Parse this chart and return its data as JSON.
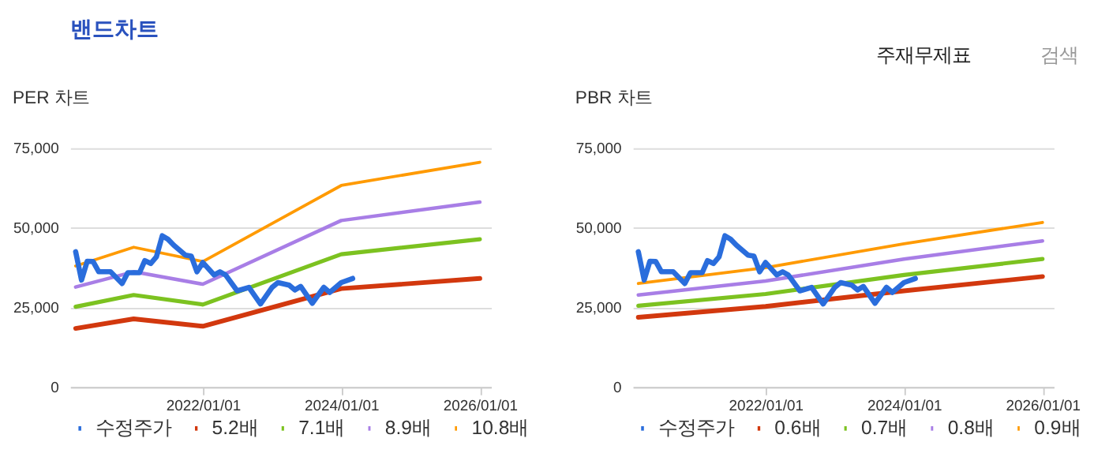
{
  "chart_data": [
    {
      "type": "other",
      "title": "밴드차트",
      "annotations": [
        "주재무제표",
        "검색"
      ]
    },
    {
      "type": "line",
      "title": "PER 차트",
      "xlim": [
        "2020-02-01",
        "2026-03-01"
      ],
      "xticks": [
        {
          "value": "2022-01-01",
          "label": "2022/01/01"
        },
        {
          "value": "2024-01-01",
          "label": "2024/01/01"
        },
        {
          "value": "2026-01-01",
          "label": "2026/01/01"
        }
      ],
      "ylim": [
        0,
        75000
      ],
      "yticks": [
        0,
        {
          "value": 25000,
          "label": "25,000"
        },
        {
          "value": 50000,
          "label": "50,000"
        },
        {
          "value": 75000,
          "label": "75,000"
        }
      ],
      "grid": "y",
      "legend": "bottom",
      "line_style": "solid",
      "series": [
        {
          "name": "수정주가",
          "color": "#2a6ddc",
          "x": [
            "2020-03",
            "2020-04",
            "2020-05",
            "2020-06",
            "2020-07",
            "2020-09",
            "2020-11",
            "2020-12",
            "2021-02",
            "2021-03",
            "2021-04",
            "2021-05",
            "2021-06",
            "2021-07",
            "2021-08",
            "2021-10",
            "2021-11",
            "2021-12",
            "2022-01",
            "2022-03",
            "2022-04",
            "2022-05",
            "2022-07",
            "2022-09",
            "2022-11",
            "2023-01",
            "2023-02",
            "2023-04",
            "2023-05",
            "2023-06",
            "2023-08",
            "2023-10",
            "2023-11",
            "2024-01",
            "2024-03"
          ],
          "values": [
            42500,
            33600,
            39500,
            39400,
            36200,
            36200,
            32500,
            35900,
            35900,
            39700,
            38800,
            40900,
            47500,
            46400,
            44500,
            41400,
            41100,
            36200,
            39100,
            35200,
            36200,
            35200,
            30200,
            31300,
            26100,
            31300,
            32800,
            32000,
            30500,
            31600,
            26300,
            31300,
            29700,
            32800,
            34100
          ]
        },
        {
          "name": "5.2배",
          "color": "#d2380e",
          "x": [
            "2020-03",
            "2021-01",
            "2022-01",
            "2024-01",
            "2026-01"
          ],
          "values": [
            18400,
            21400,
            19100,
            30900,
            34100
          ]
        },
        {
          "name": "7.1배",
          "color": "#7cc220",
          "x": [
            "2020-03",
            "2021-01",
            "2022-01",
            "2024-01",
            "2026-01"
          ],
          "values": [
            25200,
            28900,
            25900,
            41700,
            46400
          ]
        },
        {
          "name": "8.9배",
          "color": "#a87ee6",
          "x": [
            "2020-03",
            "2021-01",
            "2022-01",
            "2024-01",
            "2026-01"
          ],
          "values": [
            31400,
            36200,
            32300,
            52300,
            58100
          ]
        },
        {
          "name": "10.8배",
          "color": "#ff9a00",
          "x": [
            "2020-03",
            "2021-01",
            "2022-01",
            "2024-01",
            "2026-01"
          ],
          "values": [
            38000,
            43900,
            39400,
            63300,
            70600
          ]
        }
      ]
    },
    {
      "type": "line",
      "title": "PBR 차트",
      "xlim": [
        "2020-02-01",
        "2026-03-01"
      ],
      "xticks": [
        {
          "value": "2022-01-01",
          "label": "2022/01/01"
        },
        {
          "value": "2024-01-01",
          "label": "2024/01/01"
        },
        {
          "value": "2026-01-01",
          "label": "2026/01/01"
        }
      ],
      "ylim": [
        0,
        75000
      ],
      "yticks": [
        0,
        {
          "value": 25000,
          "label": "25,000"
        },
        {
          "value": 50000,
          "label": "50,000"
        },
        {
          "value": 75000,
          "label": "75,000"
        }
      ],
      "grid": "y",
      "legend": "bottom",
      "line_style": "solid",
      "series": [
        {
          "name": "수정주가",
          "color": "#2a6ddc",
          "x": [
            "2020-03",
            "2020-04",
            "2020-05",
            "2020-06",
            "2020-07",
            "2020-09",
            "2020-11",
            "2020-12",
            "2021-02",
            "2021-03",
            "2021-04",
            "2021-05",
            "2021-06",
            "2021-07",
            "2021-08",
            "2021-10",
            "2021-11",
            "2021-12",
            "2022-01",
            "2022-03",
            "2022-04",
            "2022-05",
            "2022-07",
            "2022-09",
            "2022-11",
            "2023-01",
            "2023-02",
            "2023-04",
            "2023-05",
            "2023-06",
            "2023-08",
            "2023-10",
            "2023-11",
            "2024-01",
            "2024-03"
          ],
          "values": [
            42500,
            33600,
            39500,
            39400,
            36200,
            36200,
            32500,
            35900,
            35900,
            39700,
            38800,
            40900,
            47500,
            46400,
            44500,
            41400,
            41100,
            36200,
            39100,
            35200,
            36200,
            35200,
            30200,
            31300,
            26100,
            31300,
            32800,
            32000,
            30500,
            31600,
            26300,
            31300,
            29700,
            32800,
            34100
          ]
        },
        {
          "name": "0.6배",
          "color": "#d2380e",
          "x": [
            "2020-03",
            "2022-01",
            "2024-01",
            "2026-01"
          ],
          "values": [
            21900,
            25300,
            30200,
            34700
          ]
        },
        {
          "name": "0.7배",
          "color": "#7cc220",
          "x": [
            "2020-03",
            "2022-01",
            "2024-01",
            "2026-01"
          ],
          "values": [
            25500,
            29200,
            35200,
            40200
          ]
        },
        {
          "name": "0.8배",
          "color": "#a87ee6",
          "x": [
            "2020-03",
            "2022-01",
            "2024-01",
            "2026-01"
          ],
          "values": [
            28900,
            33300,
            40200,
            45900
          ]
        },
        {
          "name": "0.9배",
          "color": "#ff9a00",
          "x": [
            "2020-03",
            "2022-01",
            "2024-01",
            "2026-01"
          ],
          "values": [
            32500,
            37500,
            45000,
            51700
          ]
        }
      ]
    }
  ]
}
